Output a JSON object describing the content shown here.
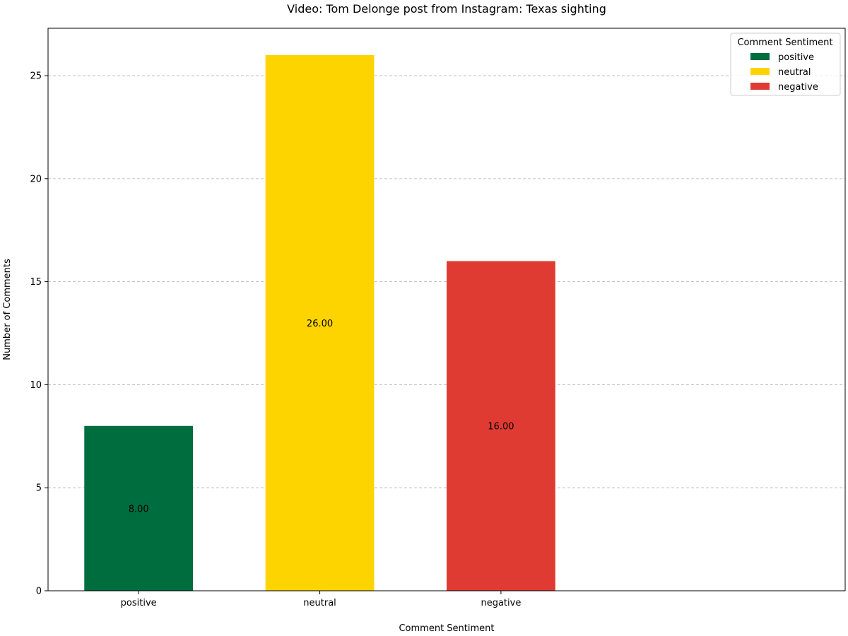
{
  "chart_data": {
    "type": "bar",
    "title": "Video: Tom Delonge post from Instagram: Texas sighting",
    "xlabel": "Comment Sentiment",
    "ylabel": "Number of Comments",
    "categories": [
      "positive",
      "neutral",
      "negative"
    ],
    "values": [
      8,
      26,
      16
    ],
    "value_labels": [
      "8.00",
      "26.00",
      "16.00"
    ],
    "colors": [
      "#006d3e",
      "#fed400",
      "#e03b33"
    ],
    "ylim": [
      0,
      27.3
    ],
    "yticks": [
      0,
      5,
      10,
      15,
      20,
      25
    ],
    "xlim": [
      -0.5,
      3.9
    ],
    "grid": "y-dashed",
    "legend": {
      "title": "Comment Sentiment",
      "position": "top-right",
      "entries": [
        "positive",
        "neutral",
        "negative"
      ]
    }
  }
}
